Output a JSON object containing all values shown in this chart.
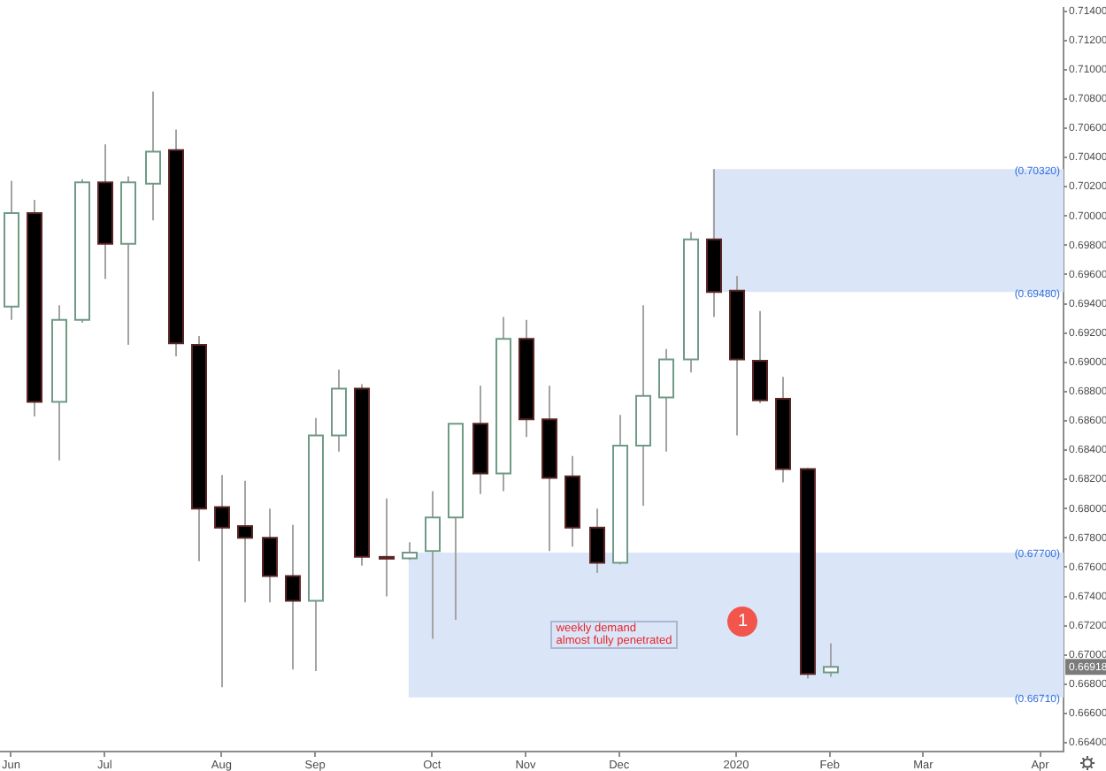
{
  "chart_data": {
    "type": "candlestick",
    "x": [
      "2019-06-03",
      "2019-06-10",
      "2019-06-17",
      "2019-06-24",
      "2019-07-01",
      "2019-07-08",
      "2019-07-15",
      "2019-07-22",
      "2019-07-29",
      "2019-08-05",
      "2019-08-12",
      "2019-08-19",
      "2019-08-26",
      "2019-09-02",
      "2019-09-09",
      "2019-09-16",
      "2019-09-23",
      "2019-09-30",
      "2019-10-07",
      "2019-10-14",
      "2019-10-21",
      "2019-10-28",
      "2019-11-04",
      "2019-11-11",
      "2019-11-18",
      "2019-11-25",
      "2019-12-02",
      "2019-12-09",
      "2019-12-16",
      "2019-12-23",
      "2019-12-30",
      "2020-01-06",
      "2020-01-13",
      "2020-01-20",
      "2020-01-27",
      "2020-02-03"
    ],
    "ohlc": [
      [
        0.6938,
        0.7024,
        0.6929,
        0.7002
      ],
      [
        0.7002,
        0.7011,
        0.6863,
        0.6873
      ],
      [
        0.6873,
        0.6939,
        0.6833,
        0.6929
      ],
      [
        0.6929,
        0.7025,
        0.6927,
        0.7023
      ],
      [
        0.7023,
        0.7049,
        0.6957,
        0.6981
      ],
      [
        0.6981,
        0.7027,
        0.6912,
        0.7023
      ],
      [
        0.7022,
        0.7085,
        0.6997,
        0.7044
      ],
      [
        0.7045,
        0.7059,
        0.6904,
        0.6913
      ],
      [
        0.6912,
        0.6918,
        0.6764,
        0.68
      ],
      [
        0.6801,
        0.6823,
        0.6678,
        0.6787
      ],
      [
        0.6788,
        0.6819,
        0.6736,
        0.678
      ],
      [
        0.678,
        0.68,
        0.6736,
        0.6754
      ],
      [
        0.6754,
        0.6789,
        0.669,
        0.6737
      ],
      [
        0.6737,
        0.6862,
        0.6689,
        0.685
      ],
      [
        0.685,
        0.6895,
        0.6839,
        0.6882
      ],
      [
        0.6882,
        0.6885,
        0.6761,
        0.6767
      ],
      [
        0.6767,
        0.6807,
        0.674,
        0.6766
      ],
      [
        0.6766,
        0.6777,
        0.6765,
        0.677
      ],
      [
        0.6771,
        0.6812,
        0.6711,
        0.6794
      ],
      [
        0.6794,
        0.6858,
        0.6724,
        0.6858
      ],
      [
        0.6858,
        0.6884,
        0.681,
        0.6824
      ],
      [
        0.6824,
        0.6931,
        0.6812,
        0.6916
      ],
      [
        0.6916,
        0.6929,
        0.6849,
        0.6861
      ],
      [
        0.6861,
        0.6884,
        0.6771,
        0.6821
      ],
      [
        0.6822,
        0.6836,
        0.6774,
        0.6787
      ],
      [
        0.6787,
        0.68,
        0.6756,
        0.6763
      ],
      [
        0.6763,
        0.6864,
        0.6762,
        0.6843
      ],
      [
        0.6843,
        0.6939,
        0.6802,
        0.6877
      ],
      [
        0.6876,
        0.6909,
        0.6839,
        0.6902
      ],
      [
        0.6902,
        0.6989,
        0.6893,
        0.6984
      ],
      [
        0.6984,
        0.7032,
        0.6931,
        0.6948
      ],
      [
        0.6949,
        0.6959,
        0.685,
        0.6902
      ],
      [
        0.6901,
        0.6935,
        0.6872,
        0.6874
      ],
      [
        0.6875,
        0.689,
        0.6818,
        0.6827
      ],
      [
        0.6827,
        0.6828,
        0.6684,
        0.6687
      ],
      [
        0.6688,
        0.6708,
        0.6685,
        0.66918
      ]
    ],
    "xlim": [
      "2019-05-31",
      "2020-04-13"
    ],
    "xticks": [
      {
        "value": "2019-06-03",
        "label": "Jun"
      },
      {
        "value": "2019-07-01",
        "label": "Jul"
      },
      {
        "value": "2019-08-05",
        "label": "Aug"
      },
      {
        "value": "2019-09-02",
        "label": "Sep"
      },
      {
        "value": "2019-10-07",
        "label": "Oct"
      },
      {
        "value": "2019-11-04",
        "label": "Nov"
      },
      {
        "value": "2019-12-02",
        "label": "Dec"
      },
      {
        "value": "2020-01-06",
        "label": "2020"
      },
      {
        "value": "2020-02-03",
        "label": "Feb"
      },
      {
        "value": "2020-03-02",
        "label": "Mar"
      },
      {
        "value": "2020-04-06",
        "label": "Apr"
      }
    ],
    "ylim": [
      0.6634,
      0.7142
    ],
    "yticks": [
      {
        "value": 0.664,
        "label": "0.66400"
      },
      {
        "value": 0.666,
        "label": "0.66600"
      },
      {
        "value": 0.668,
        "label": "0.66800"
      },
      {
        "value": 0.67,
        "label": "0.67000"
      },
      {
        "value": 0.672,
        "label": "0.67200"
      },
      {
        "value": 0.674,
        "label": "0.67400"
      },
      {
        "value": 0.676,
        "label": "0.67600"
      },
      {
        "value": 0.678,
        "label": "0.67800"
      },
      {
        "value": 0.68,
        "label": "0.68000"
      },
      {
        "value": 0.682,
        "label": "0.68200"
      },
      {
        "value": 0.684,
        "label": "0.68400"
      },
      {
        "value": 0.686,
        "label": "0.68600"
      },
      {
        "value": 0.688,
        "label": "0.68800"
      },
      {
        "value": 0.69,
        "label": "0.69000"
      },
      {
        "value": 0.692,
        "label": "0.69200"
      },
      {
        "value": 0.694,
        "label": "0.69400"
      },
      {
        "value": 0.696,
        "label": "0.69600"
      },
      {
        "value": 0.698,
        "label": "0.69800"
      },
      {
        "value": 0.7,
        "label": "0.70000"
      },
      {
        "value": 0.702,
        "label": "0.70200"
      },
      {
        "value": 0.704,
        "label": "0.70400"
      },
      {
        "value": 0.706,
        "label": "0.70600"
      },
      {
        "value": 0.708,
        "label": "0.70800"
      },
      {
        "value": 0.71,
        "label": "0.71000"
      },
      {
        "value": 0.712,
        "label": "0.71200"
      },
      {
        "value": 0.714,
        "label": "0.71400"
      }
    ],
    "bands": [
      {
        "axis": "y",
        "from": 0.6948,
        "to": 0.7032,
        "color": "#dbe5f8"
      },
      {
        "axis": "y",
        "from": 0.6671,
        "to": 0.677,
        "color": "#dbe5f8"
      }
    ],
    "annotations": [
      {
        "text": "(0.70320)",
        "y": 0.7032
      },
      {
        "text": "(0.69480)",
        "y": 0.6948
      },
      {
        "text": "(0.67700)",
        "y": 0.677
      },
      {
        "text": "(0.66710)",
        "y": 0.6671
      },
      {
        "text": "0.66918",
        "y": 0.66918
      },
      "weekly demand\nalmost fully penetrated",
      {
        "text": "1",
        "x": "2020-01-08",
        "y": 0.6723
      }
    ]
  }
}
